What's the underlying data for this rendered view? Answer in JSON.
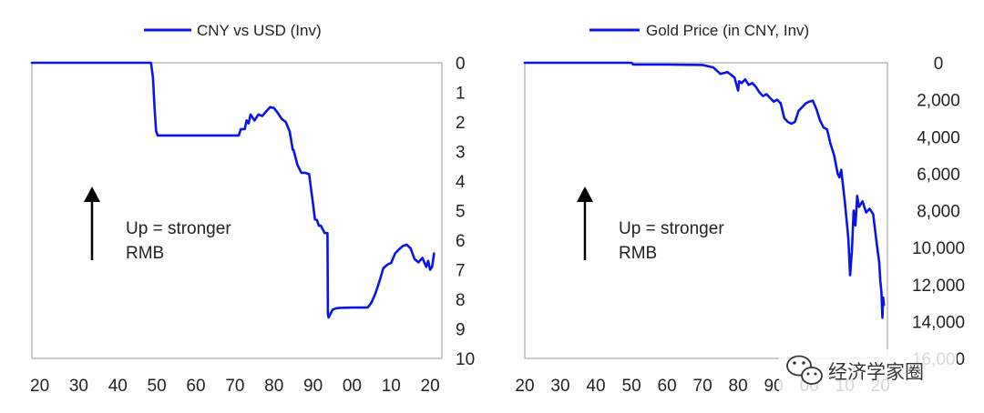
{
  "watermark": {
    "text": "经济学家圈",
    "icon": "wechat-icon"
  },
  "chart_data": [
    {
      "type": "line",
      "title": "",
      "xlabel": "",
      "ylabel": "",
      "y_inverted": true,
      "grid": false,
      "legend_position": "top-center",
      "xlim": [
        1918,
        2023
      ],
      "ylim": [
        0,
        10
      ],
      "x_ticks": [
        1920,
        1930,
        1940,
        1950,
        1960,
        1970,
        1980,
        1990,
        2000,
        2010,
        2020
      ],
      "x_tick_labels": [
        "20",
        "30",
        "40",
        "50",
        "60",
        "70",
        "80",
        "90",
        "00",
        "10",
        "20"
      ],
      "y_ticks": [
        0,
        1,
        2,
        3,
        4,
        5,
        6,
        7,
        8,
        9,
        10
      ],
      "y_tick_labels": [
        "0",
        "1",
        "2",
        "3",
        "4",
        "5",
        "6",
        "7",
        "8",
        "9",
        "10"
      ],
      "annotation": {
        "lines": [
          "Up = stronger",
          "RMB"
        ],
        "arrow": "up"
      },
      "series": [
        {
          "name": "CNY vs USD (Inv)",
          "color": "#0a14e6",
          "x": [
            1918,
            1948.5,
            1949,
            1949.4,
            1949.8,
            1950.2,
            1960,
            1971,
            1971.5,
            1972.5,
            1973,
            1973.5,
            1974,
            1975,
            1976,
            1977,
            1978,
            1979,
            1980,
            1981,
            1982,
            1983,
            1984,
            1984.8,
            1985,
            1985.5,
            1986,
            1987,
            1988,
            1989,
            1990,
            1990.5,
            1991,
            1991.5,
            1992,
            1993,
            1993.7,
            1993.8,
            1994,
            1995,
            1996,
            1997,
            2000,
            2004,
            2005,
            2006,
            2007,
            2008,
            2009,
            2010,
            2011,
            2012,
            2013,
            2014,
            2015,
            2016,
            2017,
            2018,
            2019,
            2019.5,
            2020,
            2020.5,
            2021
          ],
          "y": [
            0,
            0,
            0.5,
            1.5,
            2.3,
            2.46,
            2.46,
            2.46,
            2.25,
            2.24,
            1.95,
            2.05,
            1.75,
            1.95,
            1.75,
            1.8,
            1.65,
            1.5,
            1.53,
            1.7,
            1.9,
            2.0,
            2.32,
            2.94,
            2.94,
            3.2,
            3.45,
            3.72,
            3.72,
            3.77,
            4.78,
            5.3,
            5.32,
            5.51,
            5.51,
            5.76,
            5.76,
            8.5,
            8.62,
            8.35,
            8.3,
            8.29,
            8.28,
            8.28,
            8.1,
            7.8,
            7.4,
            6.95,
            6.83,
            6.77,
            6.45,
            6.31,
            6.2,
            6.15,
            6.28,
            6.64,
            6.75,
            6.6,
            6.9,
            6.7,
            7.0,
            6.9,
            6.45
          ]
        }
      ]
    },
    {
      "type": "line",
      "title": "",
      "xlabel": "",
      "ylabel": "",
      "y_inverted": true,
      "grid": false,
      "legend_position": "top-center",
      "xlim": [
        1920,
        2022
      ],
      "ylim": [
        0,
        16000
      ],
      "x_ticks": [
        1920,
        1930,
        1940,
        1950,
        1960,
        1970,
        1980,
        1990,
        2000,
        2010,
        2020
      ],
      "x_tick_labels": [
        "20",
        "30",
        "40",
        "50",
        "60",
        "70",
        "80",
        "90",
        "00",
        "10",
        "20"
      ],
      "y_ticks": [
        0,
        2000,
        4000,
        6000,
        8000,
        10000,
        12000,
        14000,
        16000
      ],
      "y_tick_labels": [
        "0",
        "2,000",
        "4,000",
        "6,000",
        "8,000",
        "10,000",
        "12,000",
        "14,000",
        "16,000"
      ],
      "annotation": {
        "lines": [
          "Up = stronger",
          "RMB"
        ],
        "arrow": "up"
      },
      "series": [
        {
          "name": "Gold Price (in CNY, Inv)",
          "color": "#0a14e6",
          "x": [
            1920,
            1950,
            1950.5,
            1960,
            1970,
            1973,
            1975,
            1977,
            1979,
            1980,
            1980.3,
            1981,
            1982,
            1983,
            1984,
            1985,
            1986,
            1987,
            1988,
            1989,
            1990,
            1991,
            1992,
            1993,
            1994,
            1995,
            1996,
            1997,
            1998,
            1999,
            2000,
            2001,
            2002,
            2003,
            2004,
            2005,
            2006,
            2007,
            2008,
            2008.5,
            2009,
            2010,
            2011,
            2011.5,
            2012,
            2012.5,
            2013,
            2013.5,
            2014,
            2015,
            2016,
            2017,
            2018,
            2019,
            2019.7,
            2020,
            2020.3,
            2020.6,
            2020.8,
            2021
          ],
          "y": [
            0,
            0,
            100,
            100,
            120,
            250,
            600,
            500,
            800,
            1500,
            1000,
            1100,
            900,
            1200,
            1100,
            1300,
            1600,
            1800,
            1700,
            1900,
            2100,
            2000,
            2200,
            3000,
            3200,
            3300,
            3200,
            2600,
            2400,
            2200,
            2100,
            2050,
            2500,
            3100,
            3500,
            3600,
            4400,
            5000,
            6000,
            6200,
            5800,
            7500,
            9500,
            11500,
            10200,
            8000,
            8800,
            7200,
            7800,
            7500,
            8100,
            7900,
            8200,
            9800,
            10800,
            11800,
            12400,
            13800,
            12700,
            13100
          ]
        }
      ]
    }
  ]
}
